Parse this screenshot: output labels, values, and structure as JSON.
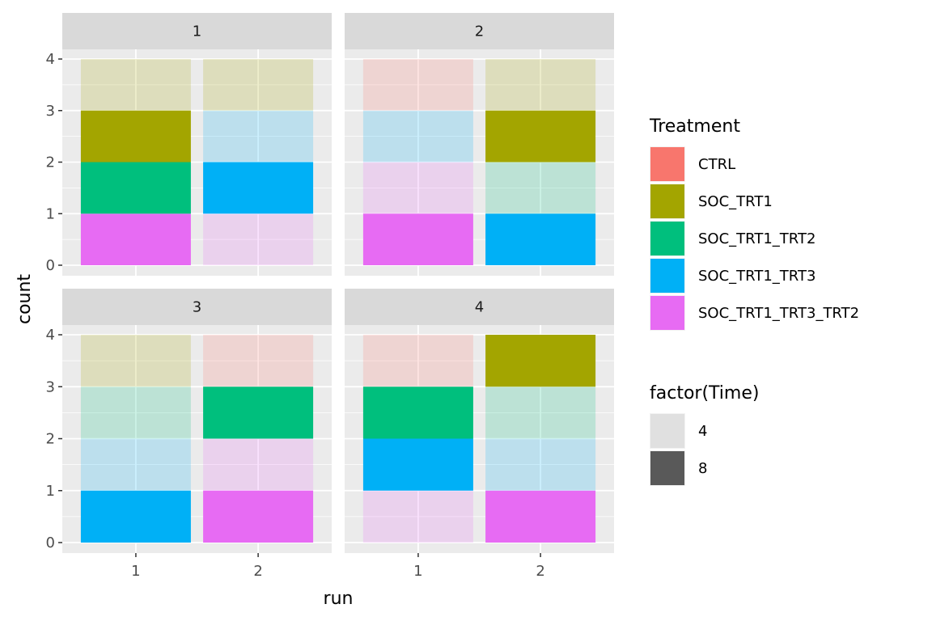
{
  "chart_data": {
    "type": "bar",
    "subtype": "stacked bar, faceted 2x2",
    "xlabel": "run",
    "ylabel": "count",
    "x_categories": [
      "1",
      "2"
    ],
    "y_ticks": [
      0,
      1,
      2,
      3,
      4
    ],
    "ylim": [
      0,
      4
    ],
    "grid": true,
    "legend_position": "right",
    "legends": [
      {
        "title": "Treatment",
        "entries": [
          {
            "label": "CTRL",
            "color": "#F8766D"
          },
          {
            "label": "SOC_TRT1",
            "color": "#A3A500"
          },
          {
            "label": "SOC_TRT1_TRT2",
            "color": "#00BF7D"
          },
          {
            "label": "SOC_TRT1_TRT3",
            "color": "#00B0F6"
          },
          {
            "label": "SOC_TRT1_TRT3_TRT2",
            "color": "#E76BF3"
          }
        ]
      },
      {
        "title": "factor(Time)",
        "entries": [
          {
            "label": "4",
            "color": "#E0E0E0",
            "alpha": 0.2
          },
          {
            "label": "8",
            "color": "#595959",
            "alpha": 1
          }
        ]
      }
    ],
    "facets": [
      {
        "label": "1",
        "bars": [
          {
            "run": "1",
            "segments": [
              {
                "treatment": "SOC_TRT1_TRT3_TRT2",
                "time": "8",
                "count": 1
              },
              {
                "treatment": "SOC_TRT1_TRT2",
                "time": "8",
                "count": 1
              },
              {
                "treatment": "SOC_TRT1",
                "time": "8",
                "count": 1
              },
              {
                "treatment": "SOC_TRT1",
                "time": "4",
                "count": 1
              }
            ]
          },
          {
            "run": "2",
            "segments": [
              {
                "treatment": "SOC_TRT1_TRT3_TRT2",
                "time": "4",
                "count": 1
              },
              {
                "treatment": "SOC_TRT1_TRT3",
                "time": "8",
                "count": 1
              },
              {
                "treatment": "SOC_TRT1_TRT3",
                "time": "4",
                "count": 1
              },
              {
                "treatment": "SOC_TRT1",
                "time": "4",
                "count": 1
              }
            ]
          }
        ]
      },
      {
        "label": "2",
        "bars": [
          {
            "run": "1",
            "segments": [
              {
                "treatment": "SOC_TRT1_TRT3_TRT2",
                "time": "8",
                "count": 1
              },
              {
                "treatment": "SOC_TRT1_TRT3_TRT2",
                "time": "4",
                "count": 1
              },
              {
                "treatment": "SOC_TRT1_TRT3",
                "time": "4",
                "count": 1
              },
              {
                "treatment": "CTRL",
                "time": "4",
                "count": 1
              }
            ]
          },
          {
            "run": "2",
            "segments": [
              {
                "treatment": "SOC_TRT1_TRT3",
                "time": "8",
                "count": 1
              },
              {
                "treatment": "SOC_TRT1_TRT2",
                "time": "4",
                "count": 1
              },
              {
                "treatment": "SOC_TRT1",
                "time": "8",
                "count": 1
              },
              {
                "treatment": "SOC_TRT1",
                "time": "4",
                "count": 1
              }
            ]
          }
        ]
      },
      {
        "label": "3",
        "bars": [
          {
            "run": "1",
            "segments": [
              {
                "treatment": "SOC_TRT1_TRT3",
                "time": "8",
                "count": 1
              },
              {
                "treatment": "SOC_TRT1_TRT3",
                "time": "4",
                "count": 1
              },
              {
                "treatment": "SOC_TRT1_TRT2",
                "time": "4",
                "count": 1
              },
              {
                "treatment": "SOC_TRT1",
                "time": "4",
                "count": 1
              }
            ]
          },
          {
            "run": "2",
            "segments": [
              {
                "treatment": "SOC_TRT1_TRT3_TRT2",
                "time": "8",
                "count": 1
              },
              {
                "treatment": "SOC_TRT1_TRT3_TRT2",
                "time": "4",
                "count": 1
              },
              {
                "treatment": "SOC_TRT1_TRT2",
                "time": "8",
                "count": 1
              },
              {
                "treatment": "CTRL",
                "time": "4",
                "count": 1
              }
            ]
          }
        ]
      },
      {
        "label": "4",
        "bars": [
          {
            "run": "1",
            "segments": [
              {
                "treatment": "SOC_TRT1_TRT3_TRT2",
                "time": "4",
                "count": 1
              },
              {
                "treatment": "SOC_TRT1_TRT3",
                "time": "8",
                "count": 1
              },
              {
                "treatment": "SOC_TRT1_TRT2",
                "time": "8",
                "count": 1
              },
              {
                "treatment": "CTRL",
                "time": "4",
                "count": 1
              }
            ]
          },
          {
            "run": "2",
            "segments": [
              {
                "treatment": "SOC_TRT1_TRT3_TRT2",
                "time": "8",
                "count": 1
              },
              {
                "treatment": "SOC_TRT1_TRT3",
                "time": "4",
                "count": 1
              },
              {
                "treatment": "SOC_TRT1_TRT2",
                "time": "4",
                "count": 1
              },
              {
                "treatment": "SOC_TRT1",
                "time": "8",
                "count": 1
              }
            ]
          }
        ]
      }
    ]
  }
}
